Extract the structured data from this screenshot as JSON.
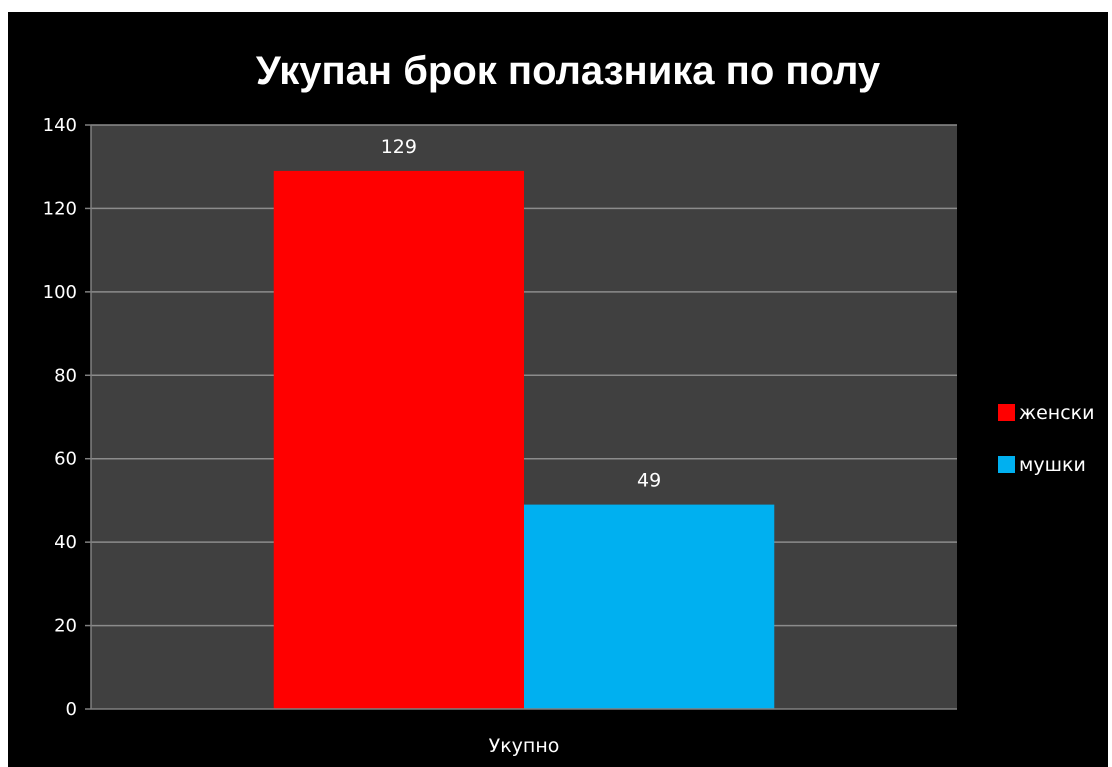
{
  "chart_data": {
    "type": "bar",
    "title": "Укупан брок полазника по полу",
    "categories": [
      "Укупно"
    ],
    "series": [
      {
        "name": "женски",
        "values": [
          129
        ],
        "color": "#ff0000"
      },
      {
        "name": "мушки",
        "values": [
          49
        ],
        "color": "#00b0f0"
      }
    ],
    "ylim": [
      0,
      140
    ],
    "yticks": [
      0,
      20,
      40,
      60,
      80,
      100,
      120,
      140
    ],
    "grid": true,
    "legend": "right",
    "plot_background": "#404040",
    "background": "#000000"
  }
}
